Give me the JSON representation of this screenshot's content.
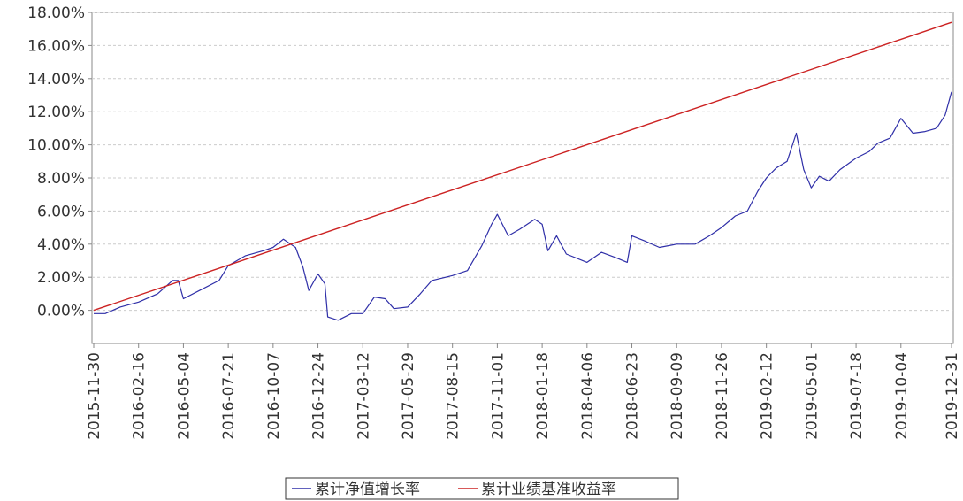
{
  "chart_data": {
    "type": "line",
    "title": "",
    "xlabel": "",
    "ylabel": "",
    "ylim": [
      -0.02,
      0.18
    ],
    "y_tick_labels": [
      "0.00%",
      "2.00%",
      "4.00%",
      "6.00%",
      "8.00%",
      "10.00%",
      "12.00%",
      "14.00%",
      "16.00%",
      "18.00%"
    ],
    "x_tick_labels": [
      "2015-11-30",
      "2016-02-16",
      "2016-05-04",
      "2016-07-21",
      "2016-10-07",
      "2016-12-24",
      "2017-03-12",
      "2017-05-29",
      "2017-08-15",
      "2017-11-01",
      "2018-01-18",
      "2018-04-06",
      "2018-06-23",
      "2018-09-09",
      "2018-11-26",
      "2019-02-12",
      "2019-05-01",
      "2019-07-18",
      "2019-10-04",
      "2019-12-31"
    ],
    "grid": true,
    "legend_position": "bottom",
    "series": [
      {
        "name": "累计净值增长率",
        "color": "#2f2fa8",
        "x": [
          "2015-11-30",
          "2015-12-20",
          "2016-01-15",
          "2016-02-16",
          "2016-03-20",
          "2016-04-15",
          "2016-04-25",
          "2016-05-04",
          "2016-06-01",
          "2016-07-05",
          "2016-07-21",
          "2016-08-20",
          "2016-09-20",
          "2016-10-07",
          "2016-10-25",
          "2016-11-15",
          "2016-11-28",
          "2016-12-08",
          "2016-12-24",
          "2017-01-05",
          "2017-01-10",
          "2017-01-28",
          "2017-02-20",
          "2017-03-12",
          "2017-04-01",
          "2017-04-20",
          "2017-05-05",
          "2017-05-29",
          "2017-06-20",
          "2017-07-10",
          "2017-08-15",
          "2017-09-10",
          "2017-10-05",
          "2017-10-22",
          "2017-11-01",
          "2017-11-20",
          "2017-12-10",
          "2018-01-05",
          "2018-01-18",
          "2018-01-28",
          "2018-02-12",
          "2018-03-01",
          "2018-04-06",
          "2018-05-01",
          "2018-05-25",
          "2018-06-15",
          "2018-06-23",
          "2018-07-15",
          "2018-08-10",
          "2018-09-09",
          "2018-10-11",
          "2018-11-05",
          "2018-11-26",
          "2018-12-20",
          "2019-01-10",
          "2019-01-28",
          "2019-02-12",
          "2019-03-01",
          "2019-03-20",
          "2019-04-05",
          "2019-04-18",
          "2019-05-01",
          "2019-05-15",
          "2019-06-01",
          "2019-06-20",
          "2019-07-18",
          "2019-08-10",
          "2019-08-25",
          "2019-09-15",
          "2019-10-04",
          "2019-10-25",
          "2019-11-15",
          "2019-12-05",
          "2019-12-20",
          "2019-12-31"
        ],
        "values": [
          -0.002,
          -0.002,
          0.002,
          0.005,
          0.01,
          0.018,
          0.018,
          0.007,
          0.012,
          0.018,
          0.027,
          0.033,
          0.036,
          0.038,
          0.043,
          0.038,
          0.026,
          0.012,
          0.022,
          0.016,
          -0.004,
          -0.006,
          -0.002,
          -0.002,
          0.008,
          0.007,
          0.001,
          0.002,
          0.01,
          0.018,
          0.021,
          0.024,
          0.039,
          0.052,
          0.058,
          0.045,
          0.049,
          0.055,
          0.052,
          0.036,
          0.045,
          0.034,
          0.029,
          0.035,
          0.032,
          0.029,
          0.045,
          0.042,
          0.038,
          0.04,
          0.04,
          0.045,
          0.05,
          0.057,
          0.06,
          0.072,
          0.08,
          0.086,
          0.09,
          0.107,
          0.085,
          0.074,
          0.081,
          0.078,
          0.085,
          0.092,
          0.096,
          0.101,
          0.104,
          0.116,
          0.107,
          0.108,
          0.11,
          0.118,
          0.132
        ]
      },
      {
        "name": "累计业绩基准收益率",
        "color": "#cc2222",
        "x": [
          "2015-11-30",
          "2019-12-31"
        ],
        "values": [
          0.0,
          0.174
        ]
      }
    ]
  }
}
